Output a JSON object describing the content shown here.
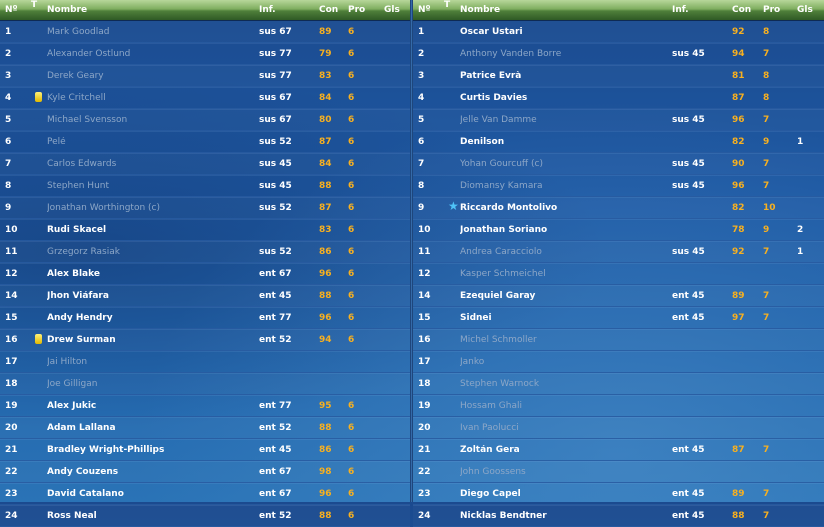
{
  "headers": {
    "num": "Nº",
    "t": "T",
    "name": "Nombre",
    "inf": "Inf.",
    "con": "Con",
    "pro": "Pro",
    "gls": "Gls"
  },
  "left": [
    {
      "num": "1",
      "name": "Mark Goodlad",
      "active": false,
      "inf": "sus 67",
      "con": "89",
      "pro": "6",
      "gls": "",
      "icon": ""
    },
    {
      "num": "2",
      "name": "Alexander Östlund",
      "active": false,
      "inf": "sus 77",
      "con": "79",
      "pro": "6",
      "gls": "",
      "icon": ""
    },
    {
      "num": "3",
      "name": "Derek Geary",
      "active": false,
      "inf": "sus 77",
      "con": "83",
      "pro": "6",
      "gls": "",
      "icon": ""
    },
    {
      "num": "4",
      "name": "Kyle Critchell",
      "active": false,
      "inf": "sus 67",
      "con": "84",
      "pro": "6",
      "gls": "",
      "icon": "yellow-card-icon"
    },
    {
      "num": "5",
      "name": "Michael Svensson",
      "active": false,
      "inf": "sus 67",
      "con": "80",
      "pro": "6",
      "gls": "",
      "icon": ""
    },
    {
      "num": "6",
      "name": "Pelé",
      "active": false,
      "inf": "sus 52",
      "con": "87",
      "pro": "6",
      "gls": "",
      "icon": ""
    },
    {
      "num": "7",
      "name": "Carlos Edwards",
      "active": false,
      "inf": "sus 45",
      "con": "84",
      "pro": "6",
      "gls": "",
      "icon": ""
    },
    {
      "num": "8",
      "name": "Stephen Hunt",
      "active": false,
      "inf": "sus 45",
      "con": "88",
      "pro": "6",
      "gls": "",
      "icon": ""
    },
    {
      "num": "9",
      "name": "Jonathan Worthington (c)",
      "active": false,
      "inf": "sus 52",
      "con": "87",
      "pro": "6",
      "gls": "",
      "icon": ""
    },
    {
      "num": "10",
      "name": "Rudi Skacel",
      "active": true,
      "inf": "",
      "con": "83",
      "pro": "6",
      "gls": "",
      "icon": ""
    },
    {
      "num": "11",
      "name": "Grzegorz Rasiak",
      "active": false,
      "inf": "sus 52",
      "con": "86",
      "pro": "6",
      "gls": "",
      "icon": ""
    },
    {
      "num": "12",
      "name": "Alex Blake",
      "active": true,
      "inf": "ent 67",
      "con": "96",
      "pro": "6",
      "gls": "",
      "icon": ""
    },
    {
      "num": "14",
      "name": "Jhon Viáfara",
      "active": true,
      "inf": "ent 45",
      "con": "88",
      "pro": "6",
      "gls": "",
      "icon": ""
    },
    {
      "num": "15",
      "name": "Andy Hendry",
      "active": true,
      "inf": "ent 77",
      "con": "96",
      "pro": "6",
      "gls": "",
      "icon": ""
    },
    {
      "num": "16",
      "name": "Drew Surman",
      "active": true,
      "inf": "ent 52",
      "con": "94",
      "pro": "6",
      "gls": "",
      "icon": "yellow-card-icon"
    },
    {
      "num": "17",
      "name": "Jai Hilton",
      "active": false,
      "inf": "",
      "con": "",
      "pro": "",
      "gls": "",
      "icon": ""
    },
    {
      "num": "18",
      "name": "Joe Gilligan",
      "active": false,
      "inf": "",
      "con": "",
      "pro": "",
      "gls": "",
      "icon": ""
    },
    {
      "num": "19",
      "name": "Alex Jukic",
      "active": true,
      "inf": "ent 77",
      "con": "95",
      "pro": "6",
      "gls": "",
      "icon": ""
    },
    {
      "num": "20",
      "name": "Adam Lallana",
      "active": true,
      "inf": "ent 52",
      "con": "88",
      "pro": "6",
      "gls": "",
      "icon": ""
    },
    {
      "num": "21",
      "name": "Bradley Wright-Phillips",
      "active": true,
      "inf": "ent 45",
      "con": "86",
      "pro": "6",
      "gls": "",
      "icon": ""
    },
    {
      "num": "22",
      "name": "Andy Couzens",
      "active": true,
      "inf": "ent 67",
      "con": "98",
      "pro": "6",
      "gls": "",
      "icon": ""
    },
    {
      "num": "23",
      "name": "David Catalano",
      "active": true,
      "inf": "ent 67",
      "con": "96",
      "pro": "6",
      "gls": "",
      "icon": ""
    },
    {
      "num": "24",
      "name": "Ross Neal",
      "active": true,
      "inf": "ent 52",
      "con": "88",
      "pro": "6",
      "gls": "",
      "icon": ""
    }
  ],
  "right": [
    {
      "num": "1",
      "name": "Oscar Ustari",
      "active": true,
      "inf": "",
      "con": "92",
      "pro": "8",
      "gls": "",
      "icon": ""
    },
    {
      "num": "2",
      "name": "Anthony Vanden Borre",
      "active": false,
      "inf": "sus 45",
      "con": "94",
      "pro": "7",
      "gls": "",
      "icon": ""
    },
    {
      "num": "3",
      "name": "Patrice Evrà",
      "active": true,
      "inf": "",
      "con": "81",
      "pro": "8",
      "gls": "",
      "icon": ""
    },
    {
      "num": "4",
      "name": "Curtis Davies",
      "active": true,
      "inf": "",
      "con": "87",
      "pro": "8",
      "gls": "",
      "icon": ""
    },
    {
      "num": "5",
      "name": "Jelle Van Damme",
      "active": false,
      "inf": "sus 45",
      "con": "96",
      "pro": "7",
      "gls": "",
      "icon": ""
    },
    {
      "num": "6",
      "name": "Denilson",
      "active": true,
      "inf": "",
      "con": "82",
      "pro": "9",
      "gls": "1",
      "icon": ""
    },
    {
      "num": "7",
      "name": "Yohan Gourcuff (c)",
      "active": false,
      "inf": "sus 45",
      "con": "90",
      "pro": "7",
      "gls": "",
      "icon": ""
    },
    {
      "num": "8",
      "name": "Diomansy Kamara",
      "active": false,
      "inf": "sus 45",
      "con": "96",
      "pro": "7",
      "gls": "",
      "icon": ""
    },
    {
      "num": "9",
      "name": "Riccardo Montolivo",
      "active": true,
      "inf": "",
      "con": "82",
      "pro": "10",
      "gls": "",
      "icon": "star-icon"
    },
    {
      "num": "10",
      "name": "Jonathan Soriano",
      "active": true,
      "inf": "",
      "con": "78",
      "pro": "9",
      "gls": "2",
      "icon": ""
    },
    {
      "num": "11",
      "name": "Andrea Caracciolo",
      "active": false,
      "inf": "sus 45",
      "con": "92",
      "pro": "7",
      "gls": "1",
      "icon": ""
    },
    {
      "num": "12",
      "name": "Kasper Schmeichel",
      "active": false,
      "inf": "",
      "con": "",
      "pro": "",
      "gls": "",
      "icon": ""
    },
    {
      "num": "14",
      "name": "Ezequiel Garay",
      "active": true,
      "inf": "ent 45",
      "con": "89",
      "pro": "7",
      "gls": "",
      "icon": ""
    },
    {
      "num": "15",
      "name": "Sidnei",
      "active": true,
      "inf": "ent 45",
      "con": "97",
      "pro": "7",
      "gls": "",
      "icon": ""
    },
    {
      "num": "16",
      "name": "Michel Schmoller",
      "active": false,
      "inf": "",
      "con": "",
      "pro": "",
      "gls": "",
      "icon": ""
    },
    {
      "num": "17",
      "name": "Janko",
      "active": false,
      "inf": "",
      "con": "",
      "pro": "",
      "gls": "",
      "icon": ""
    },
    {
      "num": "18",
      "name": "Stephen Warnock",
      "active": false,
      "inf": "",
      "con": "",
      "pro": "",
      "gls": "",
      "icon": ""
    },
    {
      "num": "19",
      "name": "Hossam Ghali",
      "active": false,
      "inf": "",
      "con": "",
      "pro": "",
      "gls": "",
      "icon": ""
    },
    {
      "num": "20",
      "name": "Ivan Paolucci",
      "active": false,
      "inf": "",
      "con": "",
      "pro": "",
      "gls": "",
      "icon": ""
    },
    {
      "num": "21",
      "name": "Zoltán Gera",
      "active": true,
      "inf": "ent 45",
      "con": "87",
      "pro": "7",
      "gls": "",
      "icon": ""
    },
    {
      "num": "22",
      "name": "John Goossens",
      "active": false,
      "inf": "",
      "con": "",
      "pro": "",
      "gls": "",
      "icon": ""
    },
    {
      "num": "23",
      "name": "Diego Capel",
      "active": true,
      "inf": "ent 45",
      "con": "89",
      "pro": "7",
      "gls": "",
      "icon": ""
    },
    {
      "num": "24",
      "name": "Nicklas Bendtner",
      "active": true,
      "inf": "ent 45",
      "con": "88",
      "pro": "7",
      "gls": "",
      "icon": ""
    }
  ]
}
